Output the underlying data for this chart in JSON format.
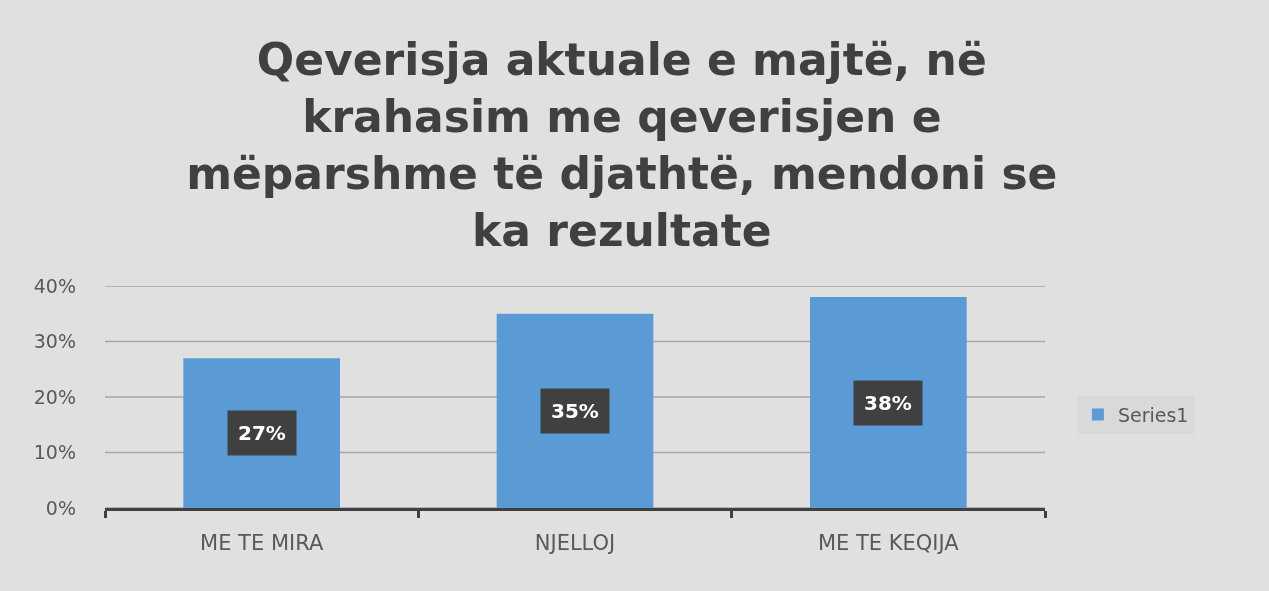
{
  "chart_data": {
    "type": "bar",
    "title": "Qeverisja aktuale e majtë, në krahasim me qeverisjen e mëparshme të djathtë, mendoni se ka rezultate",
    "categories": [
      "ME TE MIRA",
      "NJELLOJ",
      "ME TE KEQIJA"
    ],
    "series": [
      {
        "name": "Series1",
        "color": "#5b9bd5",
        "values": [
          27,
          35,
          38
        ],
        "value_labels": [
          "27%",
          "35%",
          "38%"
        ]
      }
    ],
    "ylim": [
      0,
      40
    ],
    "yticks": [
      {
        "value": 0,
        "label": "0%"
      },
      {
        "value": 10,
        "label": "10%"
      },
      {
        "value": 20,
        "label": "20%"
      },
      {
        "value": 30,
        "label": "30%"
      },
      {
        "value": 40,
        "label": "40%"
      }
    ],
    "grid": "y",
    "legend": "right"
  }
}
